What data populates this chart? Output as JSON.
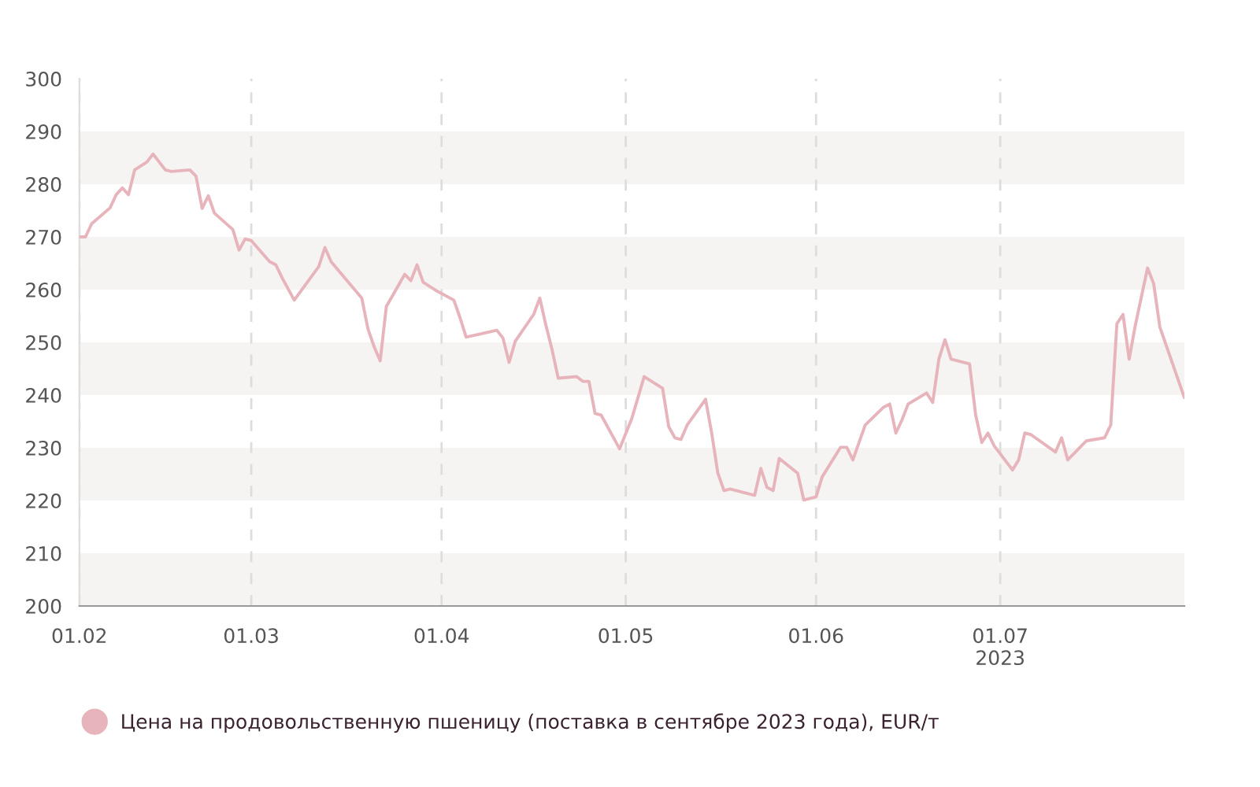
{
  "chart_data": {
    "type": "line",
    "legend": "bottom",
    "grid": "x",
    "marker": "none",
    "line_style": "solid",
    "xlim": [
      "2023-02-01",
      "2023-07-31"
    ],
    "xticks": [
      {
        "value": "2023-02-01",
        "label": "01.02"
      },
      {
        "value": "2023-03-01",
        "label": "01.03"
      },
      {
        "value": "2023-04-01",
        "label": "01.04"
      },
      {
        "value": "2023-05-01",
        "label": "01.05"
      },
      {
        "value": "2023-06-01",
        "label": "01.06"
      },
      {
        "value": "2023-07-01",
        "label": "01.07\n2023"
      }
    ],
    "ylim": [
      200,
      300
    ],
    "yticks": [
      200,
      210,
      220,
      230,
      240,
      250,
      260,
      270,
      280,
      290,
      300
    ],
    "bands": [
      {
        "axis": "y",
        "from": 200,
        "to": 210,
        "color": "#f5f4f2"
      },
      {
        "axis": "y",
        "from": 220,
        "to": 230,
        "color": "#f5f4f2"
      },
      {
        "axis": "y",
        "from": 240,
        "to": 250,
        "color": "#f5f4f2"
      },
      {
        "axis": "y",
        "from": 260,
        "to": 270,
        "color": "#f5f4f2"
      },
      {
        "axis": "y",
        "from": 280,
        "to": 290,
        "color": "#f5f4f2"
      }
    ],
    "series": [
      {
        "name": "Цена на продовольственную пшеницу (поставка в сентябре 2023 года), EUR/т",
        "color": "#e8b4bc",
        "x": [
          "2023-02-01",
          "2023-02-02",
          "2023-02-03",
          "2023-02-06",
          "2023-02-07",
          "2023-02-08",
          "2023-02-09",
          "2023-02-10",
          "2023-02-12",
          "2023-02-13",
          "2023-02-15",
          "2023-02-16",
          "2023-02-19",
          "2023-02-20",
          "2023-02-21",
          "2023-02-22",
          "2023-02-23",
          "2023-02-26",
          "2023-02-27",
          "2023-02-28",
          "2023-03-01",
          "2023-03-04",
          "2023-03-05",
          "2023-03-06",
          "2023-03-08",
          "2023-03-12",
          "2023-03-13",
          "2023-03-14",
          "2023-03-19",
          "2023-03-20",
          "2023-03-21",
          "2023-03-22",
          "2023-03-23",
          "2023-03-26",
          "2023-03-27",
          "2023-03-28",
          "2023-03-29",
          "2023-03-31",
          "2023-04-03",
          "2023-04-04",
          "2023-04-05",
          "2023-04-10",
          "2023-04-11",
          "2023-04-12",
          "2023-04-13",
          "2023-04-16",
          "2023-04-17",
          "2023-04-18",
          "2023-04-19",
          "2023-04-20",
          "2023-04-23",
          "2023-04-24",
          "2023-04-25",
          "2023-04-26",
          "2023-04-27",
          "2023-04-30",
          "2023-05-02",
          "2023-05-04",
          "2023-05-07",
          "2023-05-08",
          "2023-05-09",
          "2023-05-10",
          "2023-05-11",
          "2023-05-14",
          "2023-05-15",
          "2023-05-16",
          "2023-05-17",
          "2023-05-18",
          "2023-05-22",
          "2023-05-23",
          "2023-05-24",
          "2023-05-25",
          "2023-05-26",
          "2023-05-29",
          "2023-05-30",
          "2023-06-01",
          "2023-06-02",
          "2023-06-05",
          "2023-06-06",
          "2023-06-07",
          "2023-06-09",
          "2023-06-12",
          "2023-06-13",
          "2023-06-14",
          "2023-06-15",
          "2023-06-16",
          "2023-06-19",
          "2023-06-20",
          "2023-06-21",
          "2023-06-22",
          "2023-06-23",
          "2023-06-26",
          "2023-06-27",
          "2023-06-28",
          "2023-06-29",
          "2023-06-30",
          "2023-07-03",
          "2023-07-04",
          "2023-07-05",
          "2023-07-06",
          "2023-07-10",
          "2023-07-11",
          "2023-07-12",
          "2023-07-15",
          "2023-07-18",
          "2023-07-19",
          "2023-07-20",
          "2023-07-21",
          "2023-07-22",
          "2023-07-23",
          "2023-07-25",
          "2023-07-26",
          "2023-07-27",
          "2023-07-31"
        ],
        "values": [
          270,
          270,
          272.5,
          275.5,
          278,
          279.3,
          278,
          282.7,
          284.2,
          285.7,
          282.7,
          282.4,
          282.7,
          281.5,
          275.4,
          277.8,
          274.5,
          271.4,
          267.5,
          269.6,
          269.3,
          265.3,
          264.7,
          262.3,
          258,
          264.4,
          268,
          265.3,
          258.4,
          252.6,
          249.2,
          246.5,
          256.8,
          262.9,
          261.7,
          264.7,
          261.4,
          259.9,
          258,
          254.7,
          251,
          252.3,
          250.8,
          246.2,
          250.2,
          255.3,
          258.4,
          253.2,
          248.6,
          243.2,
          243.5,
          242.6,
          242.6,
          236.5,
          236.2,
          229.8,
          235.6,
          243.5,
          241.3,
          234,
          231.9,
          231.6,
          234.3,
          239.2,
          232.8,
          225.2,
          221.9,
          222.2,
          221,
          226.1,
          222.5,
          221.9,
          228,
          225.2,
          220.1,
          220.7,
          224.5,
          230.1,
          230.1,
          227.7,
          234.3,
          237.7,
          238.3,
          232.8,
          235.3,
          238.3,
          240.4,
          238.6,
          246.8,
          250.5,
          246.8,
          245.9,
          236.2,
          231,
          232.8,
          230.4,
          225.8,
          227.7,
          232.8,
          232.5,
          229.2,
          231.9,
          227.7,
          231.3,
          231.9,
          234.3,
          253.5,
          255.3,
          246.8,
          253.2,
          264.1,
          261.1,
          252.9,
          239.5
        ]
      }
    ]
  }
}
